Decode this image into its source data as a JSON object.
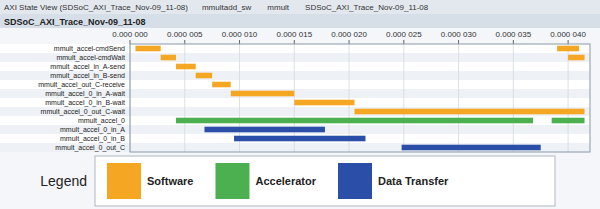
{
  "chart_data": {
    "type": "gantt",
    "title": "SDSoC_AXI_Trace_Nov-09_11-08",
    "subtitle": "AXI State View (SDSoC_AXI_Trace_Nov-09_11-08)",
    "annotations": [
      "mmultadd_sw",
      "mmult",
      "SDSoC_AXI_Trace_Nov-09_11-08",
      "Legend"
    ],
    "orientation": "horizontal",
    "grid": true,
    "legend": "bottom",
    "categories": [
      "mmult_accel-cmdSend",
      "mmult_accel-cmdWait",
      "mmult_accel_in_A-send",
      "mmult_accel_in_B-send",
      "mmult_accel_out_C-receive",
      "mmult_accel_0_in_A-wait",
      "mmult_accel_0_in_B-wait",
      "mmult_accel_0_out_C-wait",
      "mmult_accel_0",
      "mmult_accel_0_in_A",
      "mmult_accel_0_in_B",
      "mmult_accel_0_out_C"
    ],
    "xlim": [
      0,
      4.2e-05
    ],
    "xticks": [
      {
        "value": 0.0,
        "label": "0.000 000"
      },
      {
        "value": 5e-06,
        "label": "0.000 005"
      },
      {
        "value": 1e-05,
        "label": "0.000 010"
      },
      {
        "value": 1.5e-05,
        "label": "0.000 015"
      },
      {
        "value": 2e-05,
        "label": "0.000 020"
      },
      {
        "value": 2.5e-05,
        "label": "0.000 025"
      },
      {
        "value": 3e-05,
        "label": "0.000 030"
      },
      {
        "value": 3.5e-05,
        "label": "0.000 035"
      },
      {
        "value": 4e-05,
        "label": "0.000 040"
      }
    ],
    "series": [
      {
        "name": "Software",
        "color": "#F5A623",
        "values": [
          [
            [
              5e-07,
              2.8e-06
            ],
            [
              3.9e-05,
              4.1e-05
            ]
          ],
          [
            [
              2.8e-06,
              4.2e-06
            ],
            [
              4e-05,
              4.15e-05
            ]
          ],
          [
            [
              4.2e-06,
              6e-06
            ]
          ],
          [
            [
              6e-06,
              7.5e-06
            ]
          ],
          [
            [
              7.5e-06,
              9.2e-06
            ]
          ],
          [
            [
              9.2e-06,
              1.5e-05
            ]
          ],
          [
            [
              1.5e-05,
              2.05e-05
            ]
          ],
          [
            [
              2.05e-05,
              4.15e-05
            ]
          ],
          null,
          null,
          null,
          null
        ]
      },
      {
        "name": "Accelerator",
        "color": "#4CAF50",
        "values": [
          null,
          null,
          null,
          null,
          null,
          null,
          null,
          null,
          [
            [
              4.2e-06,
              3.68e-05
            ],
            [
              3.85e-05,
              4.15e-05
            ]
          ],
          null,
          null,
          null
        ]
      },
      {
        "name": "Data Transfer",
        "color": "#2B4FA8",
        "values": [
          null,
          null,
          null,
          null,
          null,
          null,
          null,
          null,
          null,
          [
            [
              6.8e-06,
              1.78e-05
            ]
          ],
          [
            [
              9.5e-06,
              2.15e-05
            ]
          ],
          [
            [
              2.48e-05,
              3.75e-05
            ]
          ]
        ]
      }
    ]
  }
}
